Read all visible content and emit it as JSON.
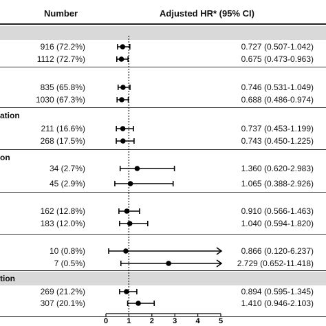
{
  "header": {
    "number_label": "Number",
    "hr_label": "Adjusted HR* (95% CI)"
  },
  "chart_data": {
    "type": "forest",
    "xlim": [
      0,
      5
    ],
    "ticks": [
      "0",
      "1",
      "2",
      "3",
      "4",
      "5"
    ],
    "reference_line": 1,
    "groups": [
      {
        "label": "",
        "band": true,
        "rows": [
          {
            "number": "916 (72.2%)",
            "hr": 0.727,
            "lo": 0.507,
            "hi": 1.042,
            "text": "0.727 (0.507-1.042)"
          },
          {
            "number": "1112 (72.7%)",
            "hr": 0.675,
            "lo": 0.473,
            "hi": 0.963,
            "text": "0.675 (0.473-0.963)"
          }
        ]
      },
      {
        "label": "",
        "band": false,
        "rows": [
          {
            "number": "835 (65.8%)",
            "hr": 0.746,
            "lo": 0.531,
            "hi": 1.049,
            "text": "0.746 (0.531-1.049)"
          },
          {
            "number": "1030 (67.3%)",
            "hr": 0.688,
            "lo": 0.486,
            "hi": 0.974,
            "text": "0.688 (0.486-0.974)"
          }
        ]
      },
      {
        "label": "ation",
        "band": false,
        "rows": [
          {
            "number": "211 (16.6%)",
            "hr": 0.737,
            "lo": 0.453,
            "hi": 1.199,
            "text": "0.737 (0.453-1.199)"
          },
          {
            "number": "268 (17.5%)",
            "hr": 0.743,
            "lo": 0.45,
            "hi": 1.225,
            "text": "0.743 (0.450-1.225)"
          }
        ]
      },
      {
        "label": "on",
        "band": false,
        "rows": [
          {
            "number": "34 (2.7%)",
            "hr": 1.36,
            "lo": 0.62,
            "hi": 2.983,
            "text": "1.360 (0.620-2.983)"
          },
          {
            "number": "45 (2.9%)",
            "hr": 1.065,
            "lo": 0.388,
            "hi": 2.926,
            "text": "1.065 (0.388-2.926)"
          }
        ]
      },
      {
        "label": "",
        "band": false,
        "rows": [
          {
            "number": "162 (12.8%)",
            "hr": 0.91,
            "lo": 0.566,
            "hi": 1.463,
            "text": "0.910 (0.566-1.463)"
          },
          {
            "number": "183 (12.0%)",
            "hr": 1.04,
            "lo": 0.594,
            "hi": 1.82,
            "text": "1.040 (0.594-1.820)"
          }
        ]
      },
      {
        "label": "",
        "band": false,
        "rows": [
          {
            "number": "10 (0.8%)",
            "hr": 0.866,
            "lo": 0.12,
            "hi": 6.237,
            "text": "0.866 (0.120-6.237)"
          },
          {
            "number": "7 (0.5%)",
            "hr": 2.729,
            "lo": 0.652,
            "hi": 11.418,
            "text": "2.729 (0.652-11.418)"
          }
        ]
      },
      {
        "label": "tion",
        "band": true,
        "rows": [
          {
            "number": "269 (21.2%)",
            "hr": 0.894,
            "lo": 0.595,
            "hi": 1.345,
            "text": "0.894 (0.595-1.345)"
          },
          {
            "number": "307 (20.1%)",
            "hr": 1.41,
            "lo": 0.946,
            "hi": 2.103,
            "text": "1.410 (0.946-2.103)"
          }
        ]
      }
    ]
  }
}
